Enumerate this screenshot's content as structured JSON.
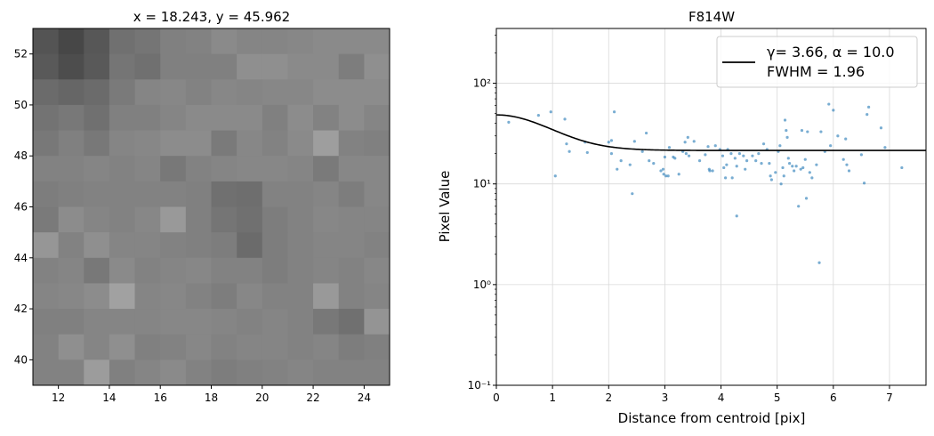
{
  "chart_data": [
    {
      "type": "heatmap",
      "title": "x = 18.243, y = 45.962",
      "xlabel": "",
      "ylabel": "",
      "xlim": [
        11,
        25
      ],
      "ylim": [
        39,
        53
      ],
      "xticks": [
        12,
        14,
        16,
        18,
        20,
        22,
        24
      ],
      "yticks": [
        40,
        42,
        44,
        46,
        48,
        50,
        52
      ],
      "colormap": "gray",
      "rows_top_to_bottom": [
        [
          0.33,
          0.28,
          0.34,
          0.44,
          0.46,
          0.5,
          0.51,
          0.54,
          0.52,
          0.52,
          0.53,
          0.54,
          0.54,
          0.54
        ],
        [
          0.35,
          0.3,
          0.35,
          0.46,
          0.44,
          0.5,
          0.5,
          0.5,
          0.56,
          0.56,
          0.54,
          0.54,
          0.49,
          0.56
        ],
        [
          0.42,
          0.4,
          0.42,
          0.48,
          0.52,
          0.53,
          0.51,
          0.53,
          0.52,
          0.53,
          0.53,
          0.55,
          0.55,
          0.55
        ],
        [
          0.45,
          0.47,
          0.44,
          0.5,
          0.5,
          0.52,
          0.54,
          0.54,
          0.54,
          0.5,
          0.55,
          0.51,
          0.55,
          0.52
        ],
        [
          0.47,
          0.5,
          0.47,
          0.52,
          0.53,
          0.55,
          0.55,
          0.48,
          0.53,
          0.51,
          0.54,
          0.62,
          0.51,
          0.5
        ],
        [
          0.51,
          0.51,
          0.52,
          0.51,
          0.52,
          0.47,
          0.51,
          0.52,
          0.53,
          0.53,
          0.52,
          0.48,
          0.53,
          0.53
        ],
        [
          0.49,
          0.5,
          0.51,
          0.51,
          0.51,
          0.51,
          0.5,
          0.44,
          0.43,
          0.51,
          0.51,
          0.52,
          0.49,
          0.53
        ],
        [
          0.48,
          0.55,
          0.52,
          0.51,
          0.53,
          0.6,
          0.5,
          0.46,
          0.44,
          0.49,
          0.51,
          0.53,
          0.52,
          0.52
        ],
        [
          0.59,
          0.51,
          0.56,
          0.52,
          0.52,
          0.51,
          0.5,
          0.49,
          0.42,
          0.49,
          0.51,
          0.52,
          0.52,
          0.51
        ],
        [
          0.51,
          0.52,
          0.47,
          0.54,
          0.51,
          0.52,
          0.53,
          0.51,
          0.51,
          0.49,
          0.51,
          0.52,
          0.51,
          0.53
        ],
        [
          0.52,
          0.53,
          0.55,
          0.63,
          0.52,
          0.53,
          0.51,
          0.49,
          0.53,
          0.51,
          0.51,
          0.6,
          0.51,
          0.52
        ],
        [
          0.5,
          0.5,
          0.52,
          0.52,
          0.52,
          0.53,
          0.53,
          0.52,
          0.51,
          0.52,
          0.51,
          0.47,
          0.44,
          0.58
        ],
        [
          0.51,
          0.56,
          0.52,
          0.56,
          0.5,
          0.51,
          0.53,
          0.51,
          0.52,
          0.52,
          0.51,
          0.52,
          0.49,
          0.5
        ],
        [
          0.51,
          0.51,
          0.61,
          0.5,
          0.52,
          0.54,
          0.51,
          0.49,
          0.5,
          0.51,
          0.52,
          0.51,
          0.51,
          0.51
        ]
      ]
    },
    {
      "type": "scatter",
      "title": "F814W",
      "xlabel": "Distance from centroid [pix]",
      "ylabel": "Pixel Value",
      "xlim": [
        0,
        7.65
      ],
      "ylim": [
        0.1,
        350
      ],
      "yscale": "log",
      "grid": true,
      "xticks": [
        0,
        1,
        2,
        3,
        4,
        5,
        6,
        7
      ],
      "yticks": [
        {
          "value": 0.1,
          "label": "10⁻¹"
        },
        {
          "value": 1,
          "label": "10⁰"
        },
        {
          "value": 10,
          "label": "10¹"
        },
        {
          "value": 100,
          "label": "10²"
        }
      ],
      "legend": {
        "position": "top-right",
        "line1": "γ= 3.66, α = 10.0",
        "line2": "FWHM = 1.96"
      },
      "series": [
        {
          "kind": "points",
          "color": "#1f77b4",
          "points": [
            [
              0.22,
              41
            ],
            [
              0.75,
              48
            ],
            [
              0.97,
              52
            ],
            [
              1.05,
              12
            ],
            [
              1.22,
              44
            ],
            [
              1.25,
              25
            ],
            [
              1.3,
              21
            ],
            [
              1.58,
              26
            ],
            [
              1.62,
              20.5
            ],
            [
              2.0,
              26
            ],
            [
              2.05,
              27
            ],
            [
              2.1,
              52
            ],
            [
              2.05,
              20
            ],
            [
              2.15,
              14
            ],
            [
              2.22,
              17
            ],
            [
              2.38,
              15.5
            ],
            [
              2.42,
              8
            ],
            [
              2.46,
              26.5
            ],
            [
              2.6,
              21
            ],
            [
              2.67,
              32
            ],
            [
              2.72,
              17
            ],
            [
              2.8,
              16
            ],
            [
              2.93,
              13.5
            ],
            [
              2.97,
              14
            ],
            [
              3.0,
              18.5
            ],
            [
              2.98,
              12.5
            ],
            [
              3.02,
              12
            ],
            [
              3.06,
              12
            ],
            [
              3.08,
              23
            ],
            [
              3.15,
              18.5
            ],
            [
              3.18,
              18
            ],
            [
              3.25,
              12.5
            ],
            [
              3.32,
              21
            ],
            [
              3.36,
              26
            ],
            [
              3.38,
              20
            ],
            [
              3.41,
              29
            ],
            [
              3.43,
              19
            ],
            [
              3.52,
              26.5
            ],
            [
              3.62,
              17
            ],
            [
              3.72,
              19.5
            ],
            [
              3.77,
              23.5
            ],
            [
              3.79,
              14
            ],
            [
              3.8,
              13.5
            ],
            [
              3.85,
              13.5
            ],
            [
              3.9,
              24
            ],
            [
              3.98,
              22
            ],
            [
              4.03,
              19
            ],
            [
              4.05,
              14.5
            ],
            [
              4.08,
              11.5
            ],
            [
              4.1,
              15.5
            ],
            [
              4.12,
              22
            ],
            [
              4.18,
              20
            ],
            [
              4.2,
              11.5
            ],
            [
              4.25,
              18
            ],
            [
              4.28,
              15
            ],
            [
              4.28,
              4.8
            ],
            [
              4.33,
              20
            ],
            [
              4.4,
              19
            ],
            [
              4.43,
              14
            ],
            [
              4.46,
              17
            ],
            [
              4.56,
              19
            ],
            [
              4.62,
              17
            ],
            [
              4.67,
              20
            ],
            [
              4.72,
              16
            ],
            [
              4.76,
              25
            ],
            [
              4.82,
              22
            ],
            [
              4.86,
              16
            ],
            [
              4.88,
              12
            ],
            [
              4.9,
              11
            ],
            [
              4.97,
              13
            ],
            [
              5.02,
              21
            ],
            [
              5.05,
              24
            ],
            [
              5.07,
              10
            ],
            [
              5.1,
              14.5
            ],
            [
              5.12,
              12
            ],
            [
              5.14,
              43
            ],
            [
              5.16,
              34
            ],
            [
              5.18,
              29
            ],
            [
              5.2,
              18
            ],
            [
              5.22,
              16
            ],
            [
              5.27,
              15
            ],
            [
              5.3,
              13.5
            ],
            [
              5.34,
              15
            ],
            [
              5.38,
              6
            ],
            [
              5.42,
              14
            ],
            [
              5.44,
              34
            ],
            [
              5.46,
              14.5
            ],
            [
              5.5,
              17.5
            ],
            [
              5.52,
              7.2
            ],
            [
              5.54,
              33
            ],
            [
              5.58,
              13
            ],
            [
              5.62,
              11.5
            ],
            [
              5.7,
              15.5
            ],
            [
              5.75,
              1.65
            ],
            [
              5.78,
              33
            ],
            [
              5.85,
              21
            ],
            [
              5.92,
              62
            ],
            [
              5.95,
              24
            ],
            [
              6.0,
              54
            ],
            [
              6.08,
              30
            ],
            [
              6.18,
              17.5
            ],
            [
              6.22,
              28
            ],
            [
              6.24,
              15.5
            ],
            [
              6.28,
              13.5
            ],
            [
              6.5,
              19.5
            ],
            [
              6.55,
              10.2
            ],
            [
              6.6,
              49
            ],
            [
              6.63,
              58
            ],
            [
              6.85,
              36
            ],
            [
              6.92,
              23
            ],
            [
              7.22,
              14.5
            ]
          ]
        },
        {
          "kind": "line",
          "color": "#000000",
          "model": "moffat",
          "amplitude": 27,
          "background": 21.5,
          "gamma": 3.66,
          "alpha": 10.0
        }
      ]
    }
  ]
}
